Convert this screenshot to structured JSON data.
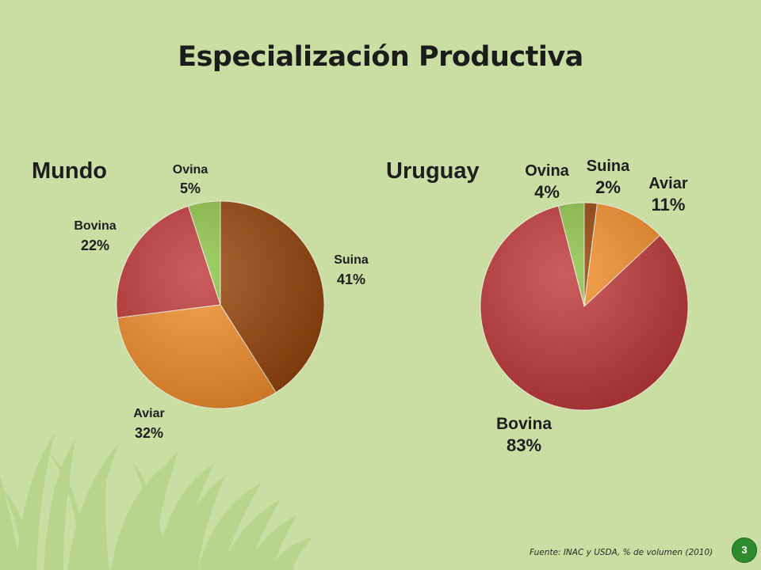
{
  "slide": {
    "title": "Especialización Productiva",
    "source": "Fuente: INAC y USDA, % de volumen (2010)",
    "page_number": "3"
  },
  "chart_data": [
    {
      "type": "pie",
      "title": "Mundo",
      "categories": [
        "Suina",
        "Aviar",
        "Bovina",
        "Ovina"
      ],
      "values": [
        41,
        32,
        22,
        5
      ],
      "labels": [
        "41%",
        "32%",
        "22%",
        "5%"
      ],
      "colors": [
        "#96450a",
        "#f5912e",
        "#c23a3a",
        "#8ec549"
      ],
      "legend": "none"
    },
    {
      "type": "pie",
      "title": "Uruguay",
      "categories": [
        "Suina",
        "Aviar",
        "Bovina",
        "Ovina"
      ],
      "values": [
        2,
        11,
        83,
        4
      ],
      "labels": [
        "2%",
        "11%",
        "83%",
        "4%"
      ],
      "colors": [
        "#96450a",
        "#f5912e",
        "#c23a3a",
        "#8ec549"
      ],
      "legend": "none"
    }
  ]
}
